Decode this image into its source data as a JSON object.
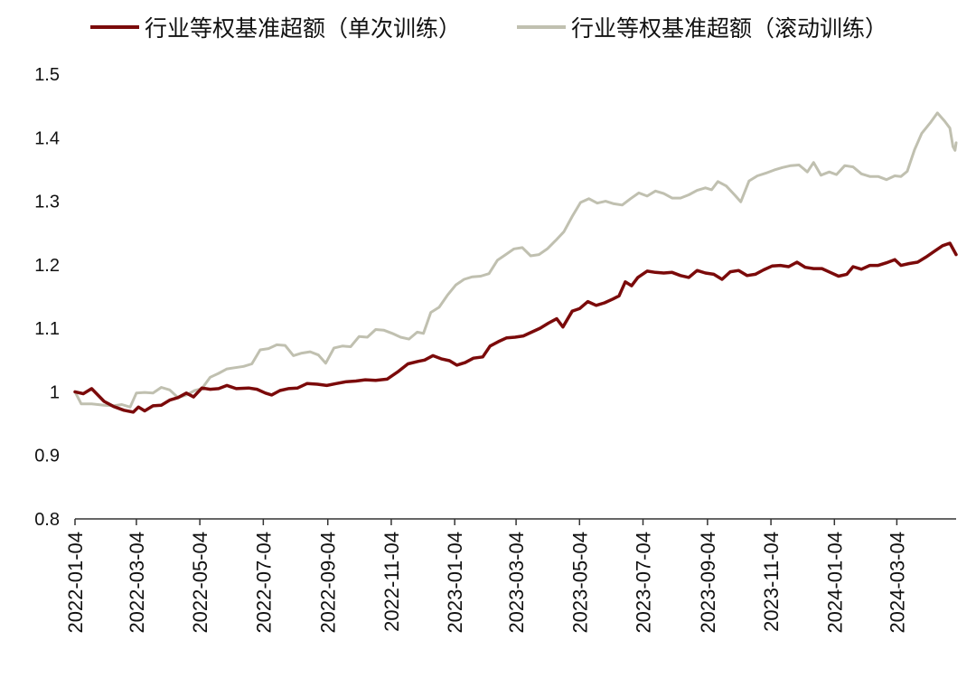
{
  "chart_data": {
    "type": "line",
    "title": "",
    "xlabel": "",
    "ylabel": "",
    "ylim": [
      0.8,
      1.5
    ],
    "yticks": [
      "0.8",
      "0.9",
      "1",
      "1.1",
      "1.2",
      "1.3",
      "1.4",
      "1.5"
    ],
    "xticks": [
      "2022-01-04",
      "2022-03-04",
      "2022-05-04",
      "2022-07-04",
      "2022-09-04",
      "2022-11-04",
      "2023-01-04",
      "2023-03-04",
      "2023-05-04",
      "2023-07-04",
      "2023-09-04",
      "2023-11-04",
      "2024-01-04",
      "2024-03-04"
    ],
    "x_end": "2024-04-30",
    "grid": false,
    "legend_position": "top",
    "series": [
      {
        "name": "行业等权基准超额（单次训练）",
        "color": "#7b0a0a",
        "points": [
          [
            "2022-01-04",
            1.0
          ],
          [
            "2022-01-12",
            0.997
          ],
          [
            "2022-01-20",
            1.005
          ],
          [
            "2022-02-01",
            0.985
          ],
          [
            "2022-02-10",
            0.977
          ],
          [
            "2022-02-20",
            0.971
          ],
          [
            "2022-03-01",
            0.968
          ],
          [
            "2022-03-06",
            0.976
          ],
          [
            "2022-03-12",
            0.97
          ],
          [
            "2022-03-20",
            0.978
          ],
          [
            "2022-03-28",
            0.979
          ],
          [
            "2022-04-05",
            0.987
          ],
          [
            "2022-04-13",
            0.991
          ],
          [
            "2022-04-21",
            0.998
          ],
          [
            "2022-04-28",
            0.992
          ],
          [
            "2022-05-06",
            1.006
          ],
          [
            "2022-05-14",
            1.004
          ],
          [
            "2022-05-22",
            1.005
          ],
          [
            "2022-05-30",
            1.01
          ],
          [
            "2022-06-08",
            1.005
          ],
          [
            "2022-06-20",
            1.006
          ],
          [
            "2022-06-28",
            1.004
          ],
          [
            "2022-07-06",
            0.998
          ],
          [
            "2022-07-12",
            0.995
          ],
          [
            "2022-07-20",
            1.002
          ],
          [
            "2022-07-28",
            1.005
          ],
          [
            "2022-08-06",
            1.006
          ],
          [
            "2022-08-15",
            1.013
          ],
          [
            "2022-08-25",
            1.012
          ],
          [
            "2022-09-03",
            1.01
          ],
          [
            "2022-09-12",
            1.013
          ],
          [
            "2022-09-22",
            1.016
          ],
          [
            "2022-10-01",
            1.017
          ],
          [
            "2022-10-10",
            1.019
          ],
          [
            "2022-10-20",
            1.018
          ],
          [
            "2022-10-31",
            1.02
          ],
          [
            "2022-11-10",
            1.031
          ],
          [
            "2022-11-20",
            1.044
          ],
          [
            "2022-11-30",
            1.048
          ],
          [
            "2022-12-06",
            1.05
          ],
          [
            "2022-12-14",
            1.057
          ],
          [
            "2022-12-22",
            1.052
          ],
          [
            "2022-12-30",
            1.049
          ],
          [
            "2023-01-06",
            1.042
          ],
          [
            "2023-01-14",
            1.046
          ],
          [
            "2023-01-22",
            1.053
          ],
          [
            "2023-01-31",
            1.055
          ],
          [
            "2023-02-07",
            1.072
          ],
          [
            "2023-02-15",
            1.079
          ],
          [
            "2023-02-23",
            1.085
          ],
          [
            "2023-03-03",
            1.086
          ],
          [
            "2023-03-11",
            1.088
          ],
          [
            "2023-03-19",
            1.094
          ],
          [
            "2023-03-27",
            1.1
          ],
          [
            "2023-04-04",
            1.108
          ],
          [
            "2023-04-12",
            1.115
          ],
          [
            "2023-04-18",
            1.102
          ],
          [
            "2023-04-27",
            1.127
          ],
          [
            "2023-05-04",
            1.131
          ],
          [
            "2023-05-12",
            1.142
          ],
          [
            "2023-05-20",
            1.136
          ],
          [
            "2023-05-28",
            1.14
          ],
          [
            "2023-06-05",
            1.146
          ],
          [
            "2023-06-11",
            1.151
          ],
          [
            "2023-06-17",
            1.173
          ],
          [
            "2023-06-23",
            1.167
          ],
          [
            "2023-06-29",
            1.18
          ],
          [
            "2023-07-08",
            1.19
          ],
          [
            "2023-07-16",
            1.188
          ],
          [
            "2023-07-24",
            1.187
          ],
          [
            "2023-08-01",
            1.188
          ],
          [
            "2023-08-09",
            1.183
          ],
          [
            "2023-08-17",
            1.18
          ],
          [
            "2023-08-25",
            1.191
          ],
          [
            "2023-09-02",
            1.187
          ],
          [
            "2023-09-10",
            1.185
          ],
          [
            "2023-09-18",
            1.177
          ],
          [
            "2023-09-26",
            1.189
          ],
          [
            "2023-10-04",
            1.191
          ],
          [
            "2023-10-12",
            1.183
          ],
          [
            "2023-10-20",
            1.185
          ],
          [
            "2023-10-28",
            1.192
          ],
          [
            "2023-11-05",
            1.198
          ],
          [
            "2023-11-13",
            1.199
          ],
          [
            "2023-11-21",
            1.197
          ],
          [
            "2023-11-29",
            1.204
          ],
          [
            "2023-12-07",
            1.196
          ],
          [
            "2023-12-15",
            1.194
          ],
          [
            "2023-12-23",
            1.194
          ],
          [
            "2023-12-31",
            1.188
          ],
          [
            "2024-01-08",
            1.182
          ],
          [
            "2024-01-16",
            1.185
          ],
          [
            "2024-01-22",
            1.197
          ],
          [
            "2024-01-30",
            1.193
          ],
          [
            "2024-02-07",
            1.199
          ],
          [
            "2024-02-15",
            1.199
          ],
          [
            "2024-02-23",
            1.203
          ],
          [
            "2024-03-02",
            1.208
          ],
          [
            "2024-03-08",
            1.199
          ],
          [
            "2024-03-16",
            1.202
          ],
          [
            "2024-03-24",
            1.204
          ],
          [
            "2024-04-01",
            1.212
          ],
          [
            "2024-04-09",
            1.221
          ],
          [
            "2024-04-17",
            1.23
          ],
          [
            "2024-04-24",
            1.234
          ],
          [
            "2024-04-30",
            1.216
          ]
        ]
      },
      {
        "name": "行业等权基准超额（滚动训练）",
        "color": "#c0c0b0",
        "points": [
          [
            "2022-01-04",
            1.0
          ],
          [
            "2022-01-10",
            0.981
          ],
          [
            "2022-01-20",
            0.981
          ],
          [
            "2022-02-01",
            0.979
          ],
          [
            "2022-02-10",
            0.978
          ],
          [
            "2022-02-18",
            0.98
          ],
          [
            "2022-02-26",
            0.976
          ],
          [
            "2022-03-04",
            0.998
          ],
          [
            "2022-03-12",
            0.999
          ],
          [
            "2022-03-20",
            0.998
          ],
          [
            "2022-03-28",
            1.007
          ],
          [
            "2022-04-05",
            1.003
          ],
          [
            "2022-04-13",
            0.991
          ],
          [
            "2022-04-21",
            0.995
          ],
          [
            "2022-04-29",
            1.002
          ],
          [
            "2022-05-06",
            1.005
          ],
          [
            "2022-05-14",
            1.023
          ],
          [
            "2022-05-22",
            1.029
          ],
          [
            "2022-05-30",
            1.036
          ],
          [
            "2022-06-07",
            1.038
          ],
          [
            "2022-06-15",
            1.04
          ],
          [
            "2022-06-23",
            1.044
          ],
          [
            "2022-07-01",
            1.066
          ],
          [
            "2022-07-09",
            1.068
          ],
          [
            "2022-07-17",
            1.074
          ],
          [
            "2022-07-25",
            1.073
          ],
          [
            "2022-08-02",
            1.057
          ],
          [
            "2022-08-10",
            1.061
          ],
          [
            "2022-08-18",
            1.063
          ],
          [
            "2022-08-26",
            1.058
          ],
          [
            "2022-09-02",
            1.045
          ],
          [
            "2022-09-10",
            1.069
          ],
          [
            "2022-09-18",
            1.072
          ],
          [
            "2022-09-26",
            1.071
          ],
          [
            "2022-10-04",
            1.087
          ],
          [
            "2022-10-12",
            1.086
          ],
          [
            "2022-10-20",
            1.098
          ],
          [
            "2022-10-28",
            1.097
          ],
          [
            "2022-11-05",
            1.092
          ],
          [
            "2022-11-13",
            1.086
          ],
          [
            "2022-11-21",
            1.083
          ],
          [
            "2022-11-29",
            1.094
          ],
          [
            "2022-12-05",
            1.092
          ],
          [
            "2022-12-12",
            1.125
          ],
          [
            "2022-12-20",
            1.133
          ],
          [
            "2022-12-28",
            1.152
          ],
          [
            "2023-01-05",
            1.168
          ],
          [
            "2023-01-13",
            1.177
          ],
          [
            "2023-01-21",
            1.181
          ],
          [
            "2023-01-29",
            1.182
          ],
          [
            "2023-02-06",
            1.186
          ],
          [
            "2023-02-14",
            1.207
          ],
          [
            "2023-02-22",
            1.216
          ],
          [
            "2023-03-02",
            1.225
          ],
          [
            "2023-03-10",
            1.227
          ],
          [
            "2023-03-18",
            1.214
          ],
          [
            "2023-03-26",
            1.216
          ],
          [
            "2023-04-03",
            1.225
          ],
          [
            "2023-04-11",
            1.238
          ],
          [
            "2023-04-19",
            1.252
          ],
          [
            "2023-04-27",
            1.276
          ],
          [
            "2023-05-05",
            1.298
          ],
          [
            "2023-05-13",
            1.304
          ],
          [
            "2023-05-21",
            1.297
          ],
          [
            "2023-05-29",
            1.3
          ],
          [
            "2023-06-06",
            1.296
          ],
          [
            "2023-06-14",
            1.294
          ],
          [
            "2023-06-22",
            1.304
          ],
          [
            "2023-06-30",
            1.313
          ],
          [
            "2023-07-08",
            1.308
          ],
          [
            "2023-07-16",
            1.316
          ],
          [
            "2023-07-24",
            1.312
          ],
          [
            "2023-08-01",
            1.305
          ],
          [
            "2023-08-09",
            1.305
          ],
          [
            "2023-08-17",
            1.31
          ],
          [
            "2023-08-25",
            1.317
          ],
          [
            "2023-09-02",
            1.321
          ],
          [
            "2023-09-08",
            1.318
          ],
          [
            "2023-09-14",
            1.331
          ],
          [
            "2023-09-22",
            1.324
          ],
          [
            "2023-09-30",
            1.31
          ],
          [
            "2023-10-06",
            1.299
          ],
          [
            "2023-10-14",
            1.332
          ],
          [
            "2023-10-22",
            1.34
          ],
          [
            "2023-10-30",
            1.344
          ],
          [
            "2023-11-07",
            1.349
          ],
          [
            "2023-11-15",
            1.353
          ],
          [
            "2023-11-23",
            1.356
          ],
          [
            "2023-12-01",
            1.357
          ],
          [
            "2023-12-09",
            1.346
          ],
          [
            "2023-12-15",
            1.361
          ],
          [
            "2023-12-22",
            1.341
          ],
          [
            "2023-12-30",
            1.346
          ],
          [
            "2024-01-06",
            1.342
          ],
          [
            "2024-01-14",
            1.356
          ],
          [
            "2024-01-22",
            1.354
          ],
          [
            "2024-01-30",
            1.343
          ],
          [
            "2024-02-07",
            1.339
          ],
          [
            "2024-02-15",
            1.339
          ],
          [
            "2024-02-23",
            1.334
          ],
          [
            "2024-03-02",
            1.34
          ],
          [
            "2024-03-08",
            1.339
          ],
          [
            "2024-03-14",
            1.347
          ],
          [
            "2024-03-21",
            1.381
          ],
          [
            "2024-03-28",
            1.407
          ],
          [
            "2024-04-05",
            1.423
          ],
          [
            "2024-04-12",
            1.439
          ],
          [
            "2024-04-19",
            1.426
          ],
          [
            "2024-04-24",
            1.415
          ],
          [
            "2024-04-27",
            1.386
          ],
          [
            "2024-04-29",
            1.38
          ],
          [
            "2024-04-30",
            1.392
          ]
        ]
      }
    ]
  }
}
